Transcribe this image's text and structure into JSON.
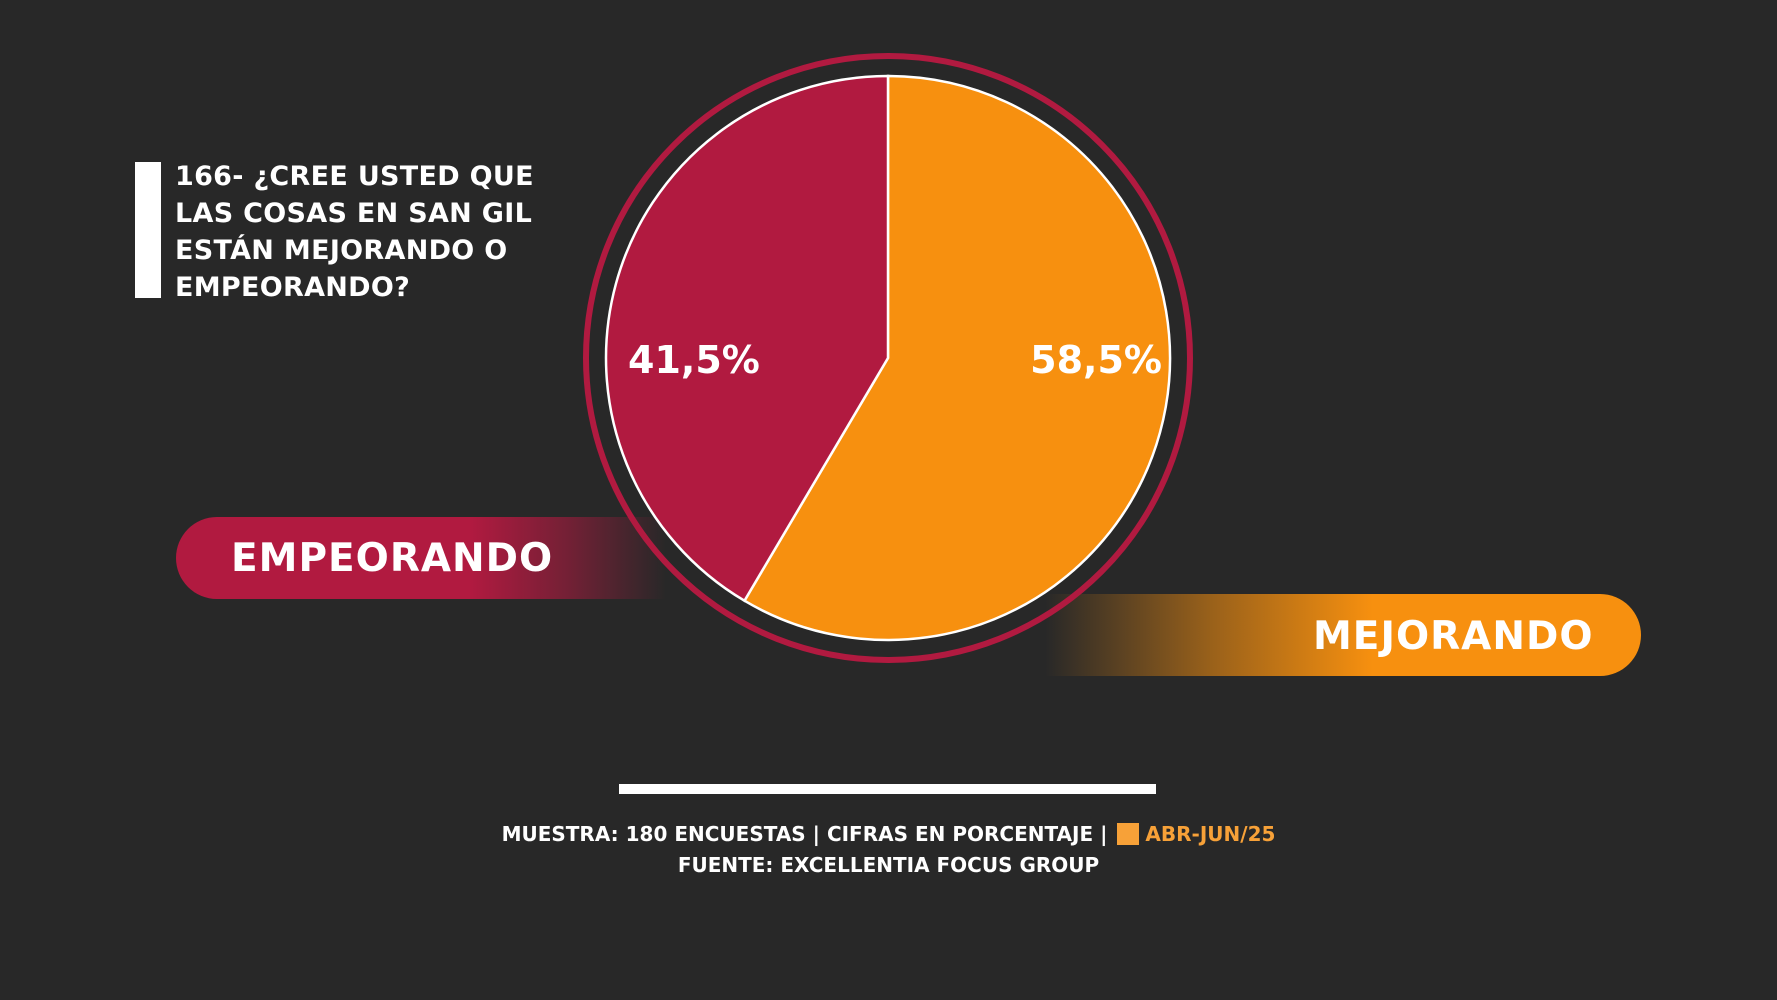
{
  "title": "166- ¿CREE USTED QUE LAS COSAS EN SAN GIL ESTÁN MEJORANDO O EMPEORANDO?",
  "chart_data": {
    "type": "pie",
    "categories": [
      "EMPEORANDO",
      "MEJORANDO"
    ],
    "values": [
      41.5,
      58.5
    ],
    "value_labels": [
      "41,5%",
      "58,5%"
    ],
    "colors": [
      "#b11a40",
      "#f7900f"
    ],
    "ring_color": "#b11a40",
    "legend_placement": "left and right pills"
  },
  "legend": {
    "left_label": "EMPEORANDO",
    "right_label": "MEJORANDO"
  },
  "footer": {
    "line1_text": "MUESTRA: 180 ENCUESTAS | CIFRAS EN PORCENTAJE |",
    "period": "ABR-JUN/25",
    "period_color": "#f7a138",
    "source": "FUENTE: EXCELLENTIA FOCUS GROUP"
  }
}
